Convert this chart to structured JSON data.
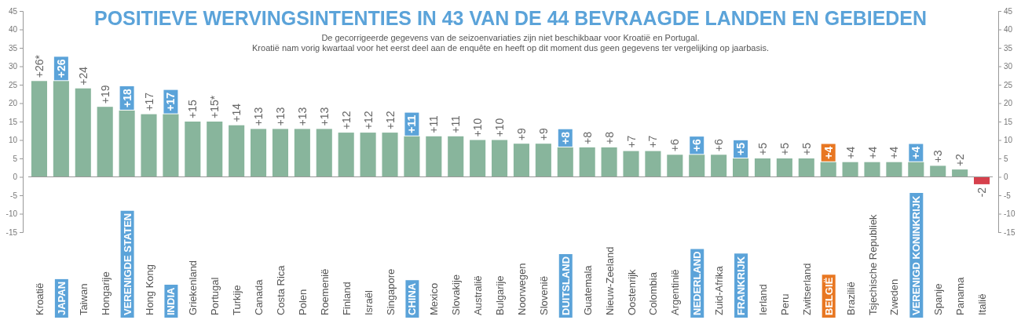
{
  "chart_data": {
    "type": "bar",
    "title": "POSITIEVE WERVINGSINTENTIES IN 43 VAN DE 44 BEVRAAGDE LANDEN EN GEBIEDEN",
    "subtitle": "De gecorrigeerde gegevens van de seizoenvariaties zijn niet beschikbaar voor Kroatië en Portugal.",
    "annotations": [
      "Kroatië nam vorig kwartaal voor het eerst deel aan de enquête en heeft op dit moment dus geen gegevens ter vergelijking op jaarbasis."
    ],
    "categories": [
      "Kroatië",
      "JAPAN",
      "Taiwan",
      "Hongarije",
      "VERENIGDE STATEN",
      "Hong Kong",
      "INDIA",
      "Griekenland",
      "Portugal",
      "Turkije",
      "Canada",
      "Costa Rica",
      "Polen",
      "Roemenië",
      "Finland",
      "Israël",
      "Singapore",
      "CHINA",
      "Mexico",
      "Slovakije",
      "Australië",
      "Bulgarije",
      "Noorwegen",
      "Slovenië",
      "DUITSLAND",
      "Guatemala",
      "Nieuw-Zeeland",
      "Oostenrijk",
      "Colombia",
      "Argentinië",
      "NEDERLAND",
      "Zuid-Afrika",
      "FRANKRIJK",
      "Ierland",
      "Peru",
      "Zwitserland",
      "BELGIË",
      "Brazilië",
      "Tsjechische Republiek",
      "Zweden",
      "VERENIGD KONINKRIJK",
      "Spanje",
      "Panama",
      "Italië"
    ],
    "values": [
      26,
      26,
      24,
      19,
      18,
      17,
      17,
      15,
      15,
      14,
      13,
      13,
      13,
      13,
      12,
      12,
      12,
      11,
      11,
      11,
      10,
      10,
      9,
      9,
      8,
      8,
      8,
      7,
      7,
      6,
      6,
      6,
      5,
      5,
      5,
      5,
      4,
      4,
      4,
      4,
      4,
      3,
      2,
      -2
    ],
    "value_labels": [
      "+26*",
      "+26",
      "+24",
      "+19",
      "+18",
      "+17",
      "+17",
      "+15",
      "+15*",
      "+14",
      "+13",
      "+13",
      "+13",
      "+13",
      "+12",
      "+12",
      "+12",
      "+11",
      "+11",
      "+11",
      "+10",
      "+10",
      "+9",
      "+9",
      "+8",
      "+8",
      "+8",
      "+7",
      "+7",
      "+6",
      "+6",
      "+6",
      "+5",
      "+5",
      "+5",
      "+5",
      "+4",
      "+4",
      "+4",
      "+4",
      "+4",
      "+3",
      "+2",
      "-2"
    ],
    "colors": [
      "#88b59c",
      "#88b59c",
      "#88b59c",
      "#88b59c",
      "#88b59c",
      "#88b59c",
      "#88b59c",
      "#88b59c",
      "#88b59c",
      "#88b59c",
      "#88b59c",
      "#88b59c",
      "#88b59c",
      "#88b59c",
      "#88b59c",
      "#88b59c",
      "#88b59c",
      "#88b59c",
      "#88b59c",
      "#88b59c",
      "#88b59c",
      "#88b59c",
      "#88b59c",
      "#88b59c",
      "#88b59c",
      "#88b59c",
      "#88b59c",
      "#88b59c",
      "#88b59c",
      "#88b59c",
      "#88b59c",
      "#88b59c",
      "#88b59c",
      "#88b59c",
      "#88b59c",
      "#88b59c",
      "#88b59c",
      "#88b59c",
      "#88b59c",
      "#88b59c",
      "#88b59c",
      "#88b59c",
      "#88b59c",
      "#d6404c"
    ],
    "ylim": [
      -15,
      45
    ],
    "yticks": [
      -15,
      -10,
      -5,
      0,
      5,
      10,
      15,
      20,
      25,
      30,
      35,
      40,
      45
    ],
    "y2lim": [
      -15,
      45
    ],
    "y2ticks": [
      -15,
      -10,
      -5,
      0,
      5,
      10,
      15,
      20,
      25,
      30,
      35,
      40,
      45
    ],
    "grid": false
  }
}
